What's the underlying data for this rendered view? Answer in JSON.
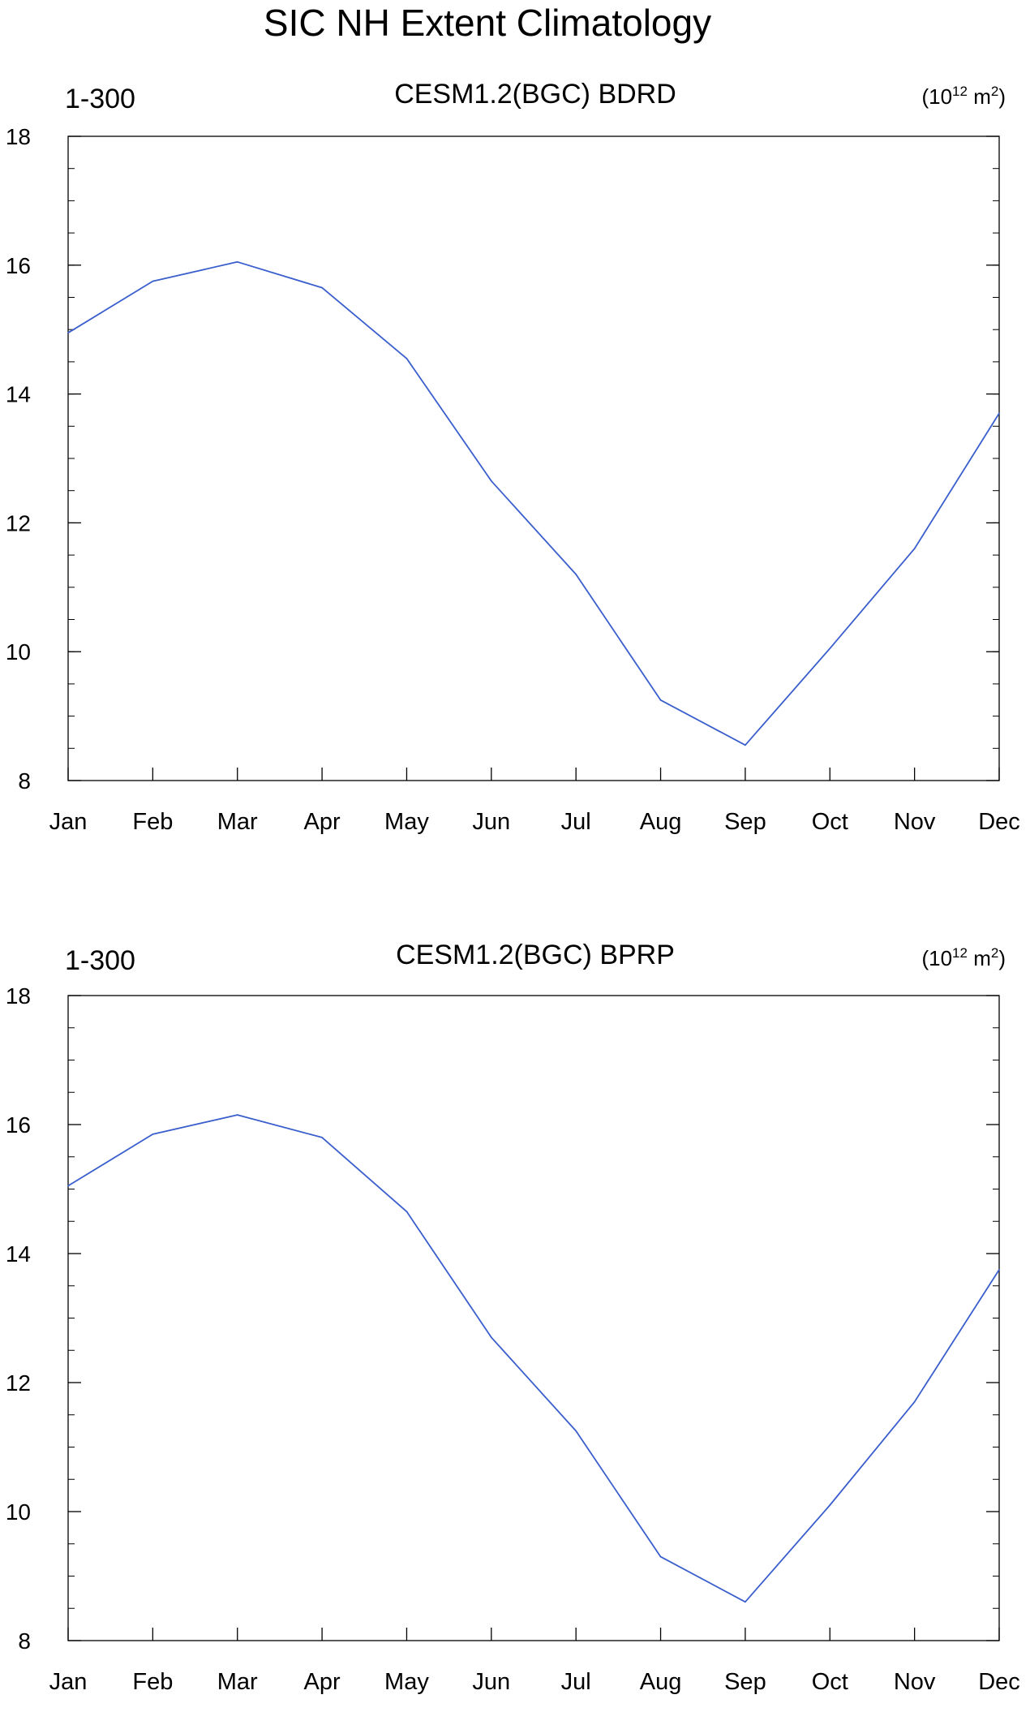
{
  "figure": {
    "title": "SIC NH Extent Climatology"
  },
  "chart_data": [
    {
      "type": "line",
      "left_label": "1-300",
      "title": "CESM1.2(BGC) BDRD",
      "units_base": "(10",
      "units_exp": "12",
      "units_unit": " m",
      "units_unit_exp": "2",
      "units_close": ")",
      "categories": [
        "Jan",
        "Feb",
        "Mar",
        "Apr",
        "May",
        "Jun",
        "Jul",
        "Aug",
        "Sep",
        "Oct",
        "Nov",
        "Dec"
      ],
      "series": [
        {
          "values": [
            14.95,
            15.75,
            16.05,
            15.65,
            14.55,
            12.65,
            11.2,
            9.25,
            8.55,
            10.05,
            11.6,
            13.7
          ],
          "color": "#3a5fcd"
        }
      ],
      "ylim": [
        8,
        18
      ],
      "yticks": [
        8,
        10,
        12,
        14,
        16,
        18
      ],
      "ytick_labels": [
        "8",
        "10",
        "12",
        "14",
        "16",
        "18"
      ],
      "yminor_step": 0.5,
      "grid": false
    },
    {
      "type": "line",
      "left_label": "1-300",
      "title": "CESM1.2(BGC) BPRP",
      "units_base": "(10",
      "units_exp": "12",
      "units_unit": " m",
      "units_unit_exp": "2",
      "units_close": ")",
      "categories": [
        "Jan",
        "Feb",
        "Mar",
        "Apr",
        "May",
        "Jun",
        "Jul",
        "Aug",
        "Sep",
        "Oct",
        "Nov",
        "Dec"
      ],
      "series": [
        {
          "values": [
            15.05,
            15.85,
            16.15,
            15.8,
            14.65,
            12.7,
            11.25,
            9.3,
            8.6,
            10.1,
            11.7,
            13.75
          ],
          "color": "#3a5fcd"
        }
      ],
      "ylim": [
        8,
        18
      ],
      "yticks": [
        8,
        10,
        12,
        14,
        16,
        18
      ],
      "ytick_labels": [
        "8",
        "10",
        "12",
        "14",
        "16",
        "18"
      ],
      "yminor_step": 0.5,
      "grid": false
    }
  ]
}
